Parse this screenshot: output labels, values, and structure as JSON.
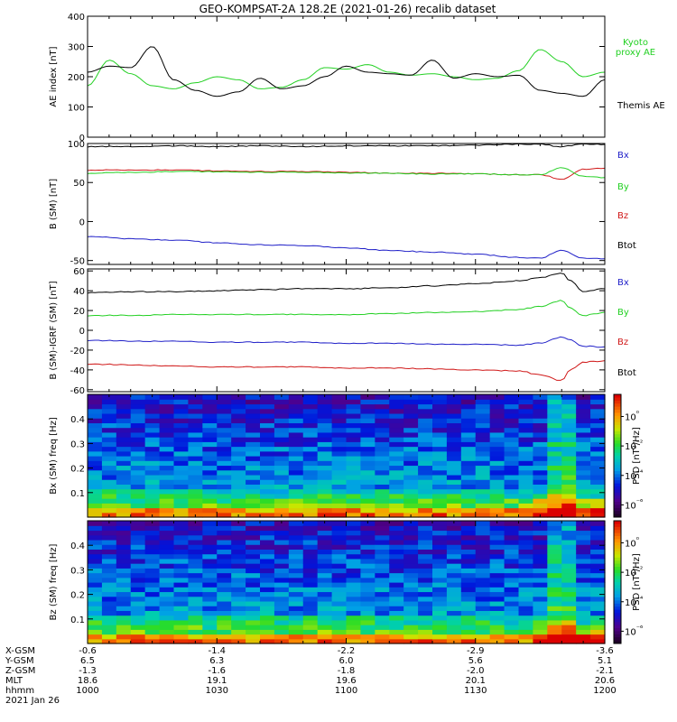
{
  "title": "GEO-KOMPSAT-2A 128.2E (2021-01-26) recalib dataset",
  "colors": {
    "black": "#000000",
    "blue": "#1f1fc8",
    "green": "#22d022",
    "red": "#d01818"
  },
  "colorbar_unit": "PSD [nT²/Hz]",
  "colorbar_ticks": [
    "10⁰",
    "10⁻²",
    "10⁻⁴",
    "10⁻⁶"
  ],
  "chart_data": [
    {
      "id": "ae",
      "type": "line",
      "ylabel": "AE index [nT]",
      "ylim": [
        0,
        400
      ],
      "yticks": [
        0,
        100,
        200,
        300,
        400
      ],
      "x": [
        1000,
        1005,
        1010,
        1015,
        1020,
        1025,
        1030,
        1035,
        1040,
        1045,
        1050,
        1055,
        1100,
        1105,
        1110,
        1115,
        1120,
        1125,
        1130,
        1135,
        1140,
        1145,
        1150,
        1155,
        1200
      ],
      "series": [
        {
          "name": "Kyoto proxy AE",
          "color": "green",
          "values": [
            170,
            255,
            210,
            170,
            160,
            180,
            200,
            190,
            160,
            165,
            190,
            230,
            225,
            240,
            215,
            205,
            210,
            200,
            190,
            195,
            220,
            290,
            250,
            200,
            215
          ]
        },
        {
          "name": "Themis AE",
          "color": "black",
          "values": [
            215,
            235,
            230,
            300,
            190,
            155,
            135,
            150,
            195,
            160,
            170,
            200,
            235,
            215,
            210,
            205,
            255,
            195,
            210,
            200,
            205,
            155,
            145,
            135,
            190
          ]
        }
      ]
    },
    {
      "id": "b",
      "type": "line",
      "ylabel": "B (SM) [nT]",
      "ylim": [
        -55,
        100
      ],
      "yticks": [
        -50,
        0,
        50,
        100
      ],
      "x": [
        1000,
        1010,
        1020,
        1030,
        1040,
        1050,
        1100,
        1110,
        1120,
        1130,
        1140,
        1145,
        1150,
        1155,
        1200
      ],
      "series": [
        {
          "name": "Btot",
          "color": "black",
          "values": [
            96,
            96,
            97,
            96,
            97,
            96,
            97,
            97,
            97,
            98,
            99,
            99,
            96,
            99,
            99
          ]
        },
        {
          "name": "Bz",
          "color": "red",
          "values": [
            66,
            66,
            66,
            65,
            64,
            64,
            63,
            62,
            62,
            61,
            60,
            60,
            54,
            67,
            68
          ]
        },
        {
          "name": "By",
          "color": "green",
          "values": [
            62,
            63,
            64,
            64,
            63,
            63,
            62,
            62,
            61,
            61,
            60,
            60,
            69,
            58,
            56
          ]
        },
        {
          "name": "Bx",
          "color": "blue",
          "values": [
            -19,
            -22,
            -24,
            -27,
            -30,
            -31,
            -34,
            -37,
            -39,
            -42,
            -46,
            -47,
            -37,
            -47,
            -48
          ]
        }
      ]
    },
    {
      "id": "db",
      "type": "line",
      "ylabel": "B (SM)-IGRF (SM) [nT]",
      "ylim": [
        -62,
        62
      ],
      "yticks": [
        -60,
        -40,
        -20,
        0,
        20,
        40,
        60
      ],
      "x": [
        1000,
        1010,
        1020,
        1030,
        1040,
        1050,
        1100,
        1110,
        1120,
        1130,
        1140,
        1145,
        1150,
        1152,
        1155,
        1200
      ],
      "series": [
        {
          "name": "Btot",
          "color": "black",
          "values": [
            38,
            39,
            39,
            40,
            41,
            42,
            42,
            43,
            45,
            47,
            50,
            53,
            58,
            50,
            39,
            42
          ]
        },
        {
          "name": "By",
          "color": "green",
          "values": [
            15,
            15,
            16,
            16,
            16,
            16,
            16,
            17,
            18,
            19,
            21,
            24,
            30,
            22,
            15,
            18
          ]
        },
        {
          "name": "Bz",
          "color": "red",
          "values": [
            -34,
            -35,
            -36,
            -37,
            -37,
            -37,
            -38,
            -38,
            -39,
            -40,
            -41,
            -45,
            -51,
            -40,
            -32,
            -31
          ]
        },
        {
          "name": "Bx",
          "color": "blue",
          "values": [
            -10,
            -11,
            -11,
            -12,
            -12,
            -12,
            -13,
            -13,
            -14,
            -14,
            -15,
            -13,
            -7,
            -10,
            -16,
            -17
          ]
        }
      ]
    },
    {
      "id": "bxspec",
      "type": "heatmap",
      "ylabel": "Bx (SM) freq [Hz]",
      "ylim": [
        0,
        0.5
      ],
      "yticks": [
        0.1,
        0.2,
        0.3,
        0.4
      ],
      "zlabel": "PSD [nT²/Hz]"
    },
    {
      "id": "bzspec",
      "type": "heatmap",
      "ylabel": "Bz (SM) freq [Hz]",
      "ylim": [
        0,
        0.5
      ],
      "yticks": [
        0.1,
        0.2,
        0.3,
        0.4
      ],
      "zlabel": "PSD [nT²/Hz]"
    }
  ],
  "ephemeris": {
    "labels": [
      "X-GSM",
      "Y-GSM",
      "Z-GSM",
      "MLT",
      "hhmm"
    ],
    "columns": [
      {
        "time": 1000,
        "values": [
          "-0.6",
          "6.5",
          "-1.3",
          "18.6",
          "1000"
        ]
      },
      {
        "time": 1030,
        "values": [
          "-1.4",
          "6.3",
          "-1.6",
          "19.1",
          "1030"
        ]
      },
      {
        "time": 1100,
        "values": [
          "-2.2",
          "6.0",
          "-1.8",
          "19.6",
          "1100"
        ]
      },
      {
        "time": 1130,
        "values": [
          "-2.9",
          "5.6",
          "-2.0",
          "20.1",
          "1130"
        ]
      },
      {
        "time": 1200,
        "values": [
          "-3.6",
          "5.1",
          "-2.1",
          "20.6",
          "1200"
        ]
      }
    ],
    "date": "2021 Jan 26"
  }
}
